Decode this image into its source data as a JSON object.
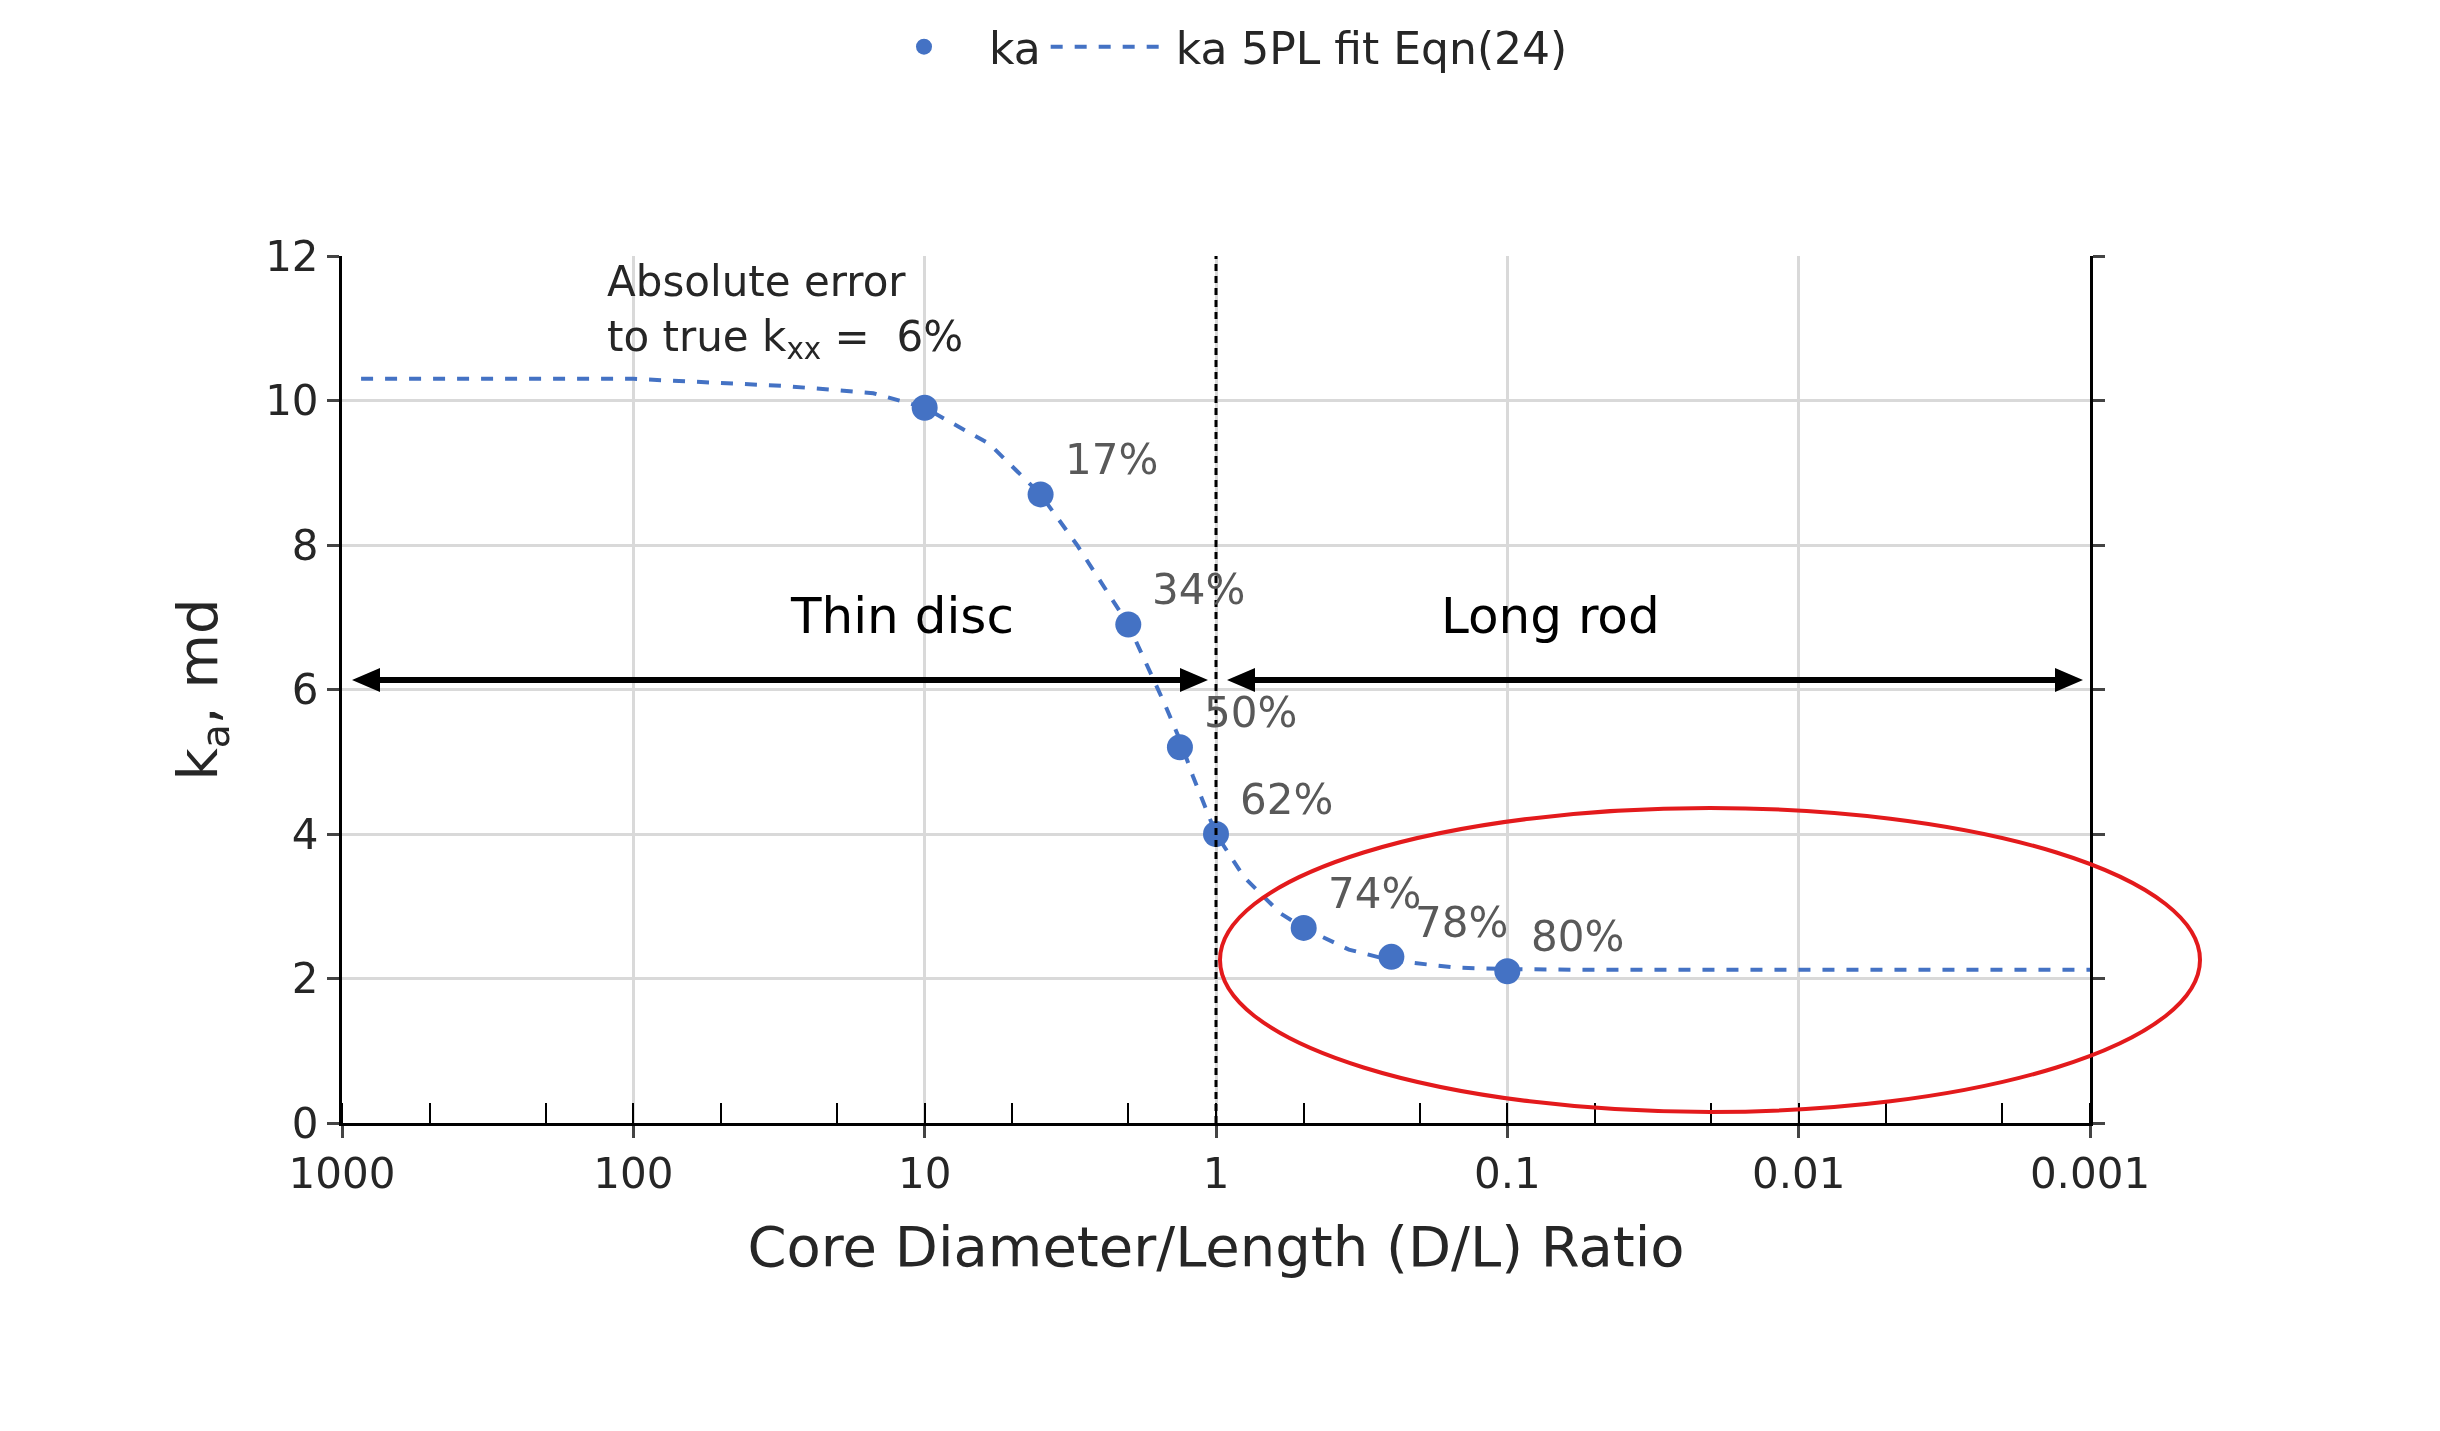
{
  "chart_data": {
    "type": "scatter",
    "xlabel": "Core Diameter/Length (D/L) Ratio",
    "ylabel": "k$_{a}$, md",
    "xlim": [
      1000,
      0.001
    ],
    "xticks": [
      1000,
      100,
      10,
      1,
      0.1,
      0.01,
      0.001
    ],
    "ylim": [
      0,
      12
    ],
    "yticks": [
      0,
      2,
      4,
      6,
      8,
      10,
      12
    ],
    "log": "x",
    "grid": true,
    "legend": "top",
    "marker": "circle",
    "series": [
      {
        "name": "ka",
        "type": "scatter",
        "color": "#4472c4",
        "x": [
          10,
          4,
          2,
          1.33,
          1,
          0.5,
          0.25,
          0.1
        ],
        "values": [
          9.9,
          8.7,
          6.9,
          5.2,
          4.0,
          2.7,
          2.3,
          2.1
        ]
      },
      {
        "name": "ka 5PL fit Eqn(24)",
        "type": "line",
        "line_style": "dashed",
        "marker": "none",
        "color": "#4472c4",
        "x": [
          860,
          300,
          100,
          30,
          15,
          10,
          6,
          4,
          3,
          2,
          1.5,
          1.33,
          1.2,
          1,
          0.8,
          0.6,
          0.5,
          0.35,
          0.25,
          0.15,
          0.1,
          0.05,
          0.01,
          0.001
        ],
        "values": [
          10.3,
          10.3,
          10.3,
          10.2,
          10.1,
          9.9,
          9.4,
          8.7,
          8.0,
          6.9,
          5.8,
          5.3,
          4.8,
          4.0,
          3.4,
          2.9,
          2.7,
          2.4,
          2.25,
          2.15,
          2.13,
          2.12,
          2.12,
          2.12
        ]
      }
    ],
    "ref_lines": [
      {
        "axis": "x",
        "value": 1,
        "color": "#000000",
        "line_style": "dotted"
      }
    ],
    "annotations": [
      "Thin disc",
      "Long rod",
      {
        "text": "Absolute error\nto true k$_{xx}$ =  6%",
        "x": 10,
        "y": 9.9
      },
      {
        "text": "17%",
        "x": 4,
        "y": 8.7
      },
      {
        "text": "34%",
        "x": 2,
        "y": 6.9
      },
      {
        "text": "50%",
        "x": 1.33,
        "y": 5.2
      },
      {
        "text": "62%",
        "x": 1,
        "y": 4.0
      },
      {
        "text": "74%",
        "x": 0.5,
        "y": 2.7
      },
      {
        "text": "78%",
        "x": 0.25,
        "y": 2.3
      },
      {
        "text": "80%",
        "x": 0.1,
        "y": 2.1
      }
    ]
  }
}
